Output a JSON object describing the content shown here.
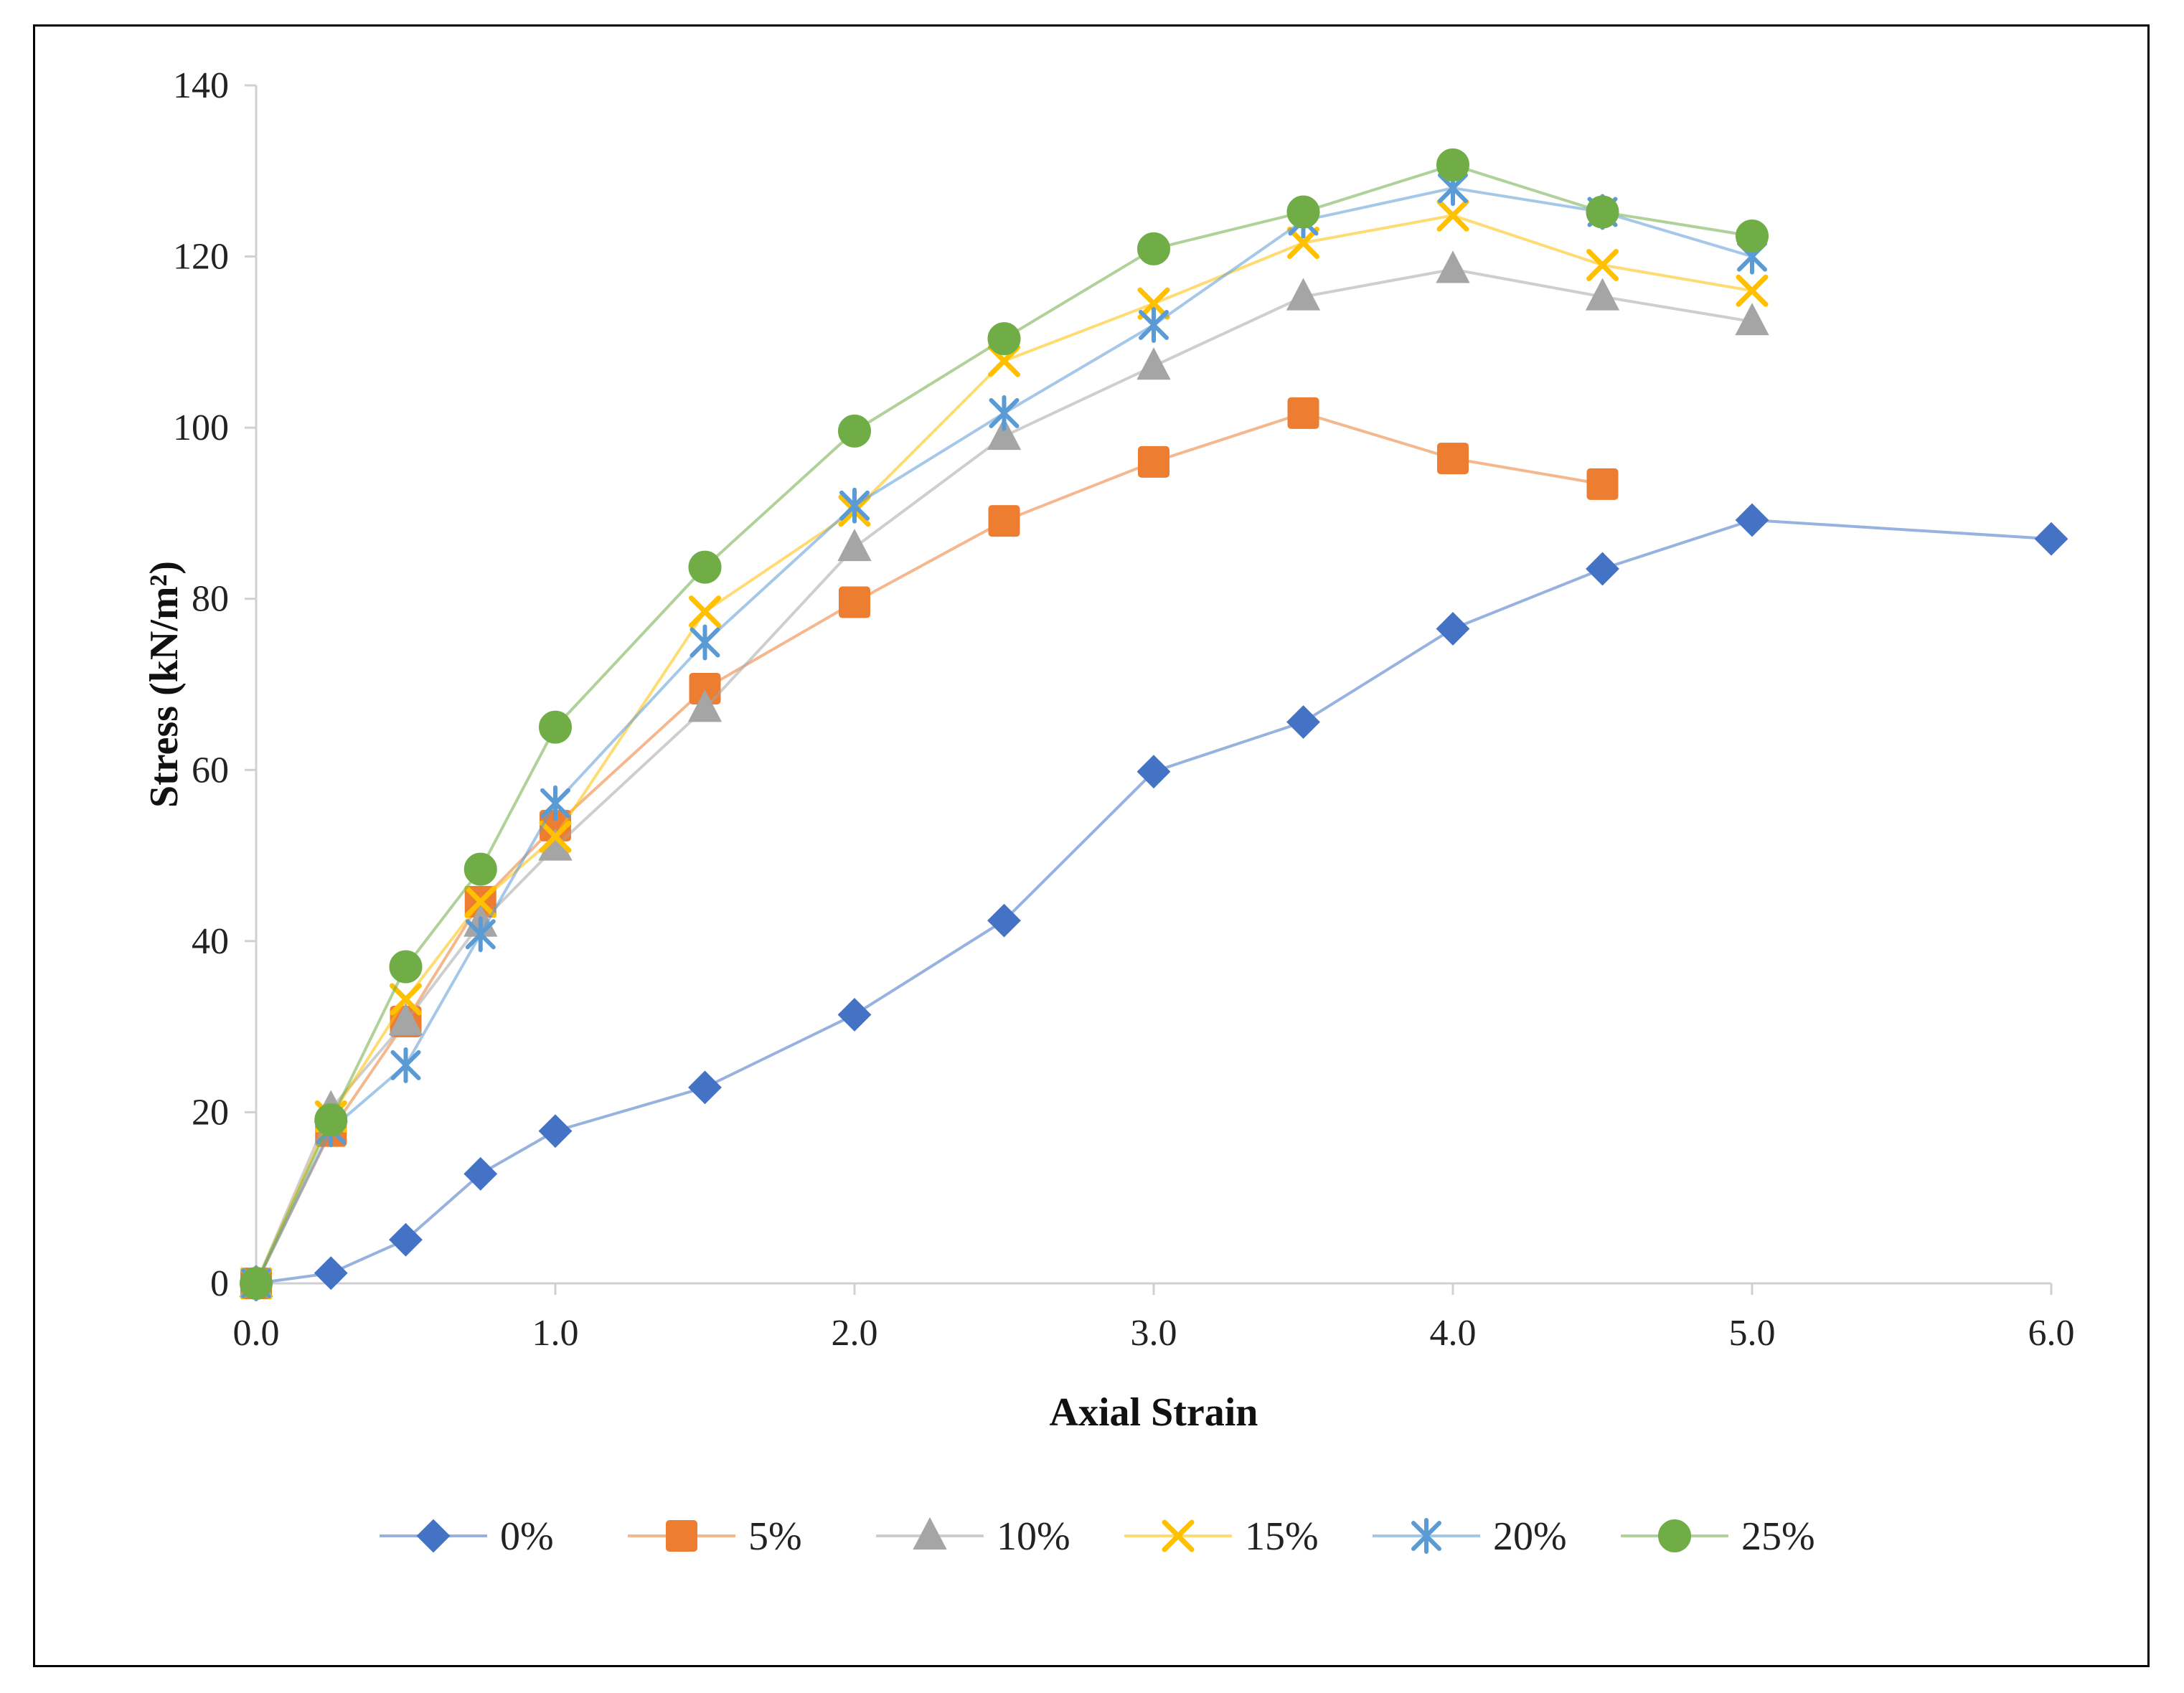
{
  "chart_data": {
    "type": "line",
    "xlabel": "Axial Strain",
    "ylabel": "Stress (kN/m²)",
    "xlim": [
      0,
      6
    ],
    "ylim": [
      0,
      140
    ],
    "x_ticks": [
      "0.0",
      "1.0",
      "2.0",
      "3.0",
      "4.0",
      "5.0",
      "6.0"
    ],
    "y_ticks": [
      "0",
      "20",
      "40",
      "60",
      "80",
      "100",
      "120",
      "140"
    ],
    "grid": "none",
    "legend_position": "bottom",
    "series": [
      {
        "name": "0%",
        "color": "#4472C4",
        "marker": "diamond",
        "x": [
          0,
          0.25,
          0.5,
          0.75,
          1.0,
          1.5,
          2.0,
          2.5,
          3.0,
          3.5,
          4.0,
          4.5,
          5.0,
          6.0
        ],
        "y": [
          0,
          1.2,
          5.1,
          12.8,
          17.8,
          22.9,
          31.4,
          42.4,
          59.8,
          65.6,
          76.5,
          83.5,
          89.2,
          87.0
        ]
      },
      {
        "name": "5%",
        "color": "#ED7D31",
        "marker": "square",
        "x": [
          0,
          0.25,
          0.5,
          0.75,
          1.0,
          1.5,
          2.0,
          2.5,
          3.0,
          3.5,
          4.0,
          4.5
        ],
        "y": [
          0,
          17.8,
          30.6,
          44.6,
          53.5,
          69.5,
          79.6,
          89.1,
          96.0,
          101.7,
          96.4,
          93.4
        ]
      },
      {
        "name": "10%",
        "color": "#A5A5A5",
        "marker": "triangle",
        "x": [
          0,
          0.25,
          0.5,
          0.75,
          1.0,
          1.5,
          2.0,
          2.5,
          3.0,
          3.5,
          4.0,
          4.5,
          5.0
        ],
        "y": [
          0,
          20.4,
          30.6,
          42.1,
          51.0,
          67.2,
          86.0,
          99.0,
          107.2,
          115.3,
          118.5,
          115.3,
          112.4
        ]
      },
      {
        "name": "15%",
        "color": "#FFC000",
        "marker": "x",
        "x": [
          0,
          0.25,
          0.5,
          0.75,
          1.0,
          1.5,
          2.0,
          2.5,
          3.0,
          3.5,
          4.0,
          4.5,
          5.0
        ],
        "y": [
          0,
          19.5,
          33.2,
          44.6,
          52.2,
          78.5,
          90.3,
          107.8,
          114.5,
          121.6,
          124.8,
          119.0,
          116.0
        ]
      },
      {
        "name": "20%",
        "color": "#5B9BD5",
        "marker": "star",
        "x": [
          0,
          0.25,
          0.5,
          0.75,
          1.0,
          1.5,
          2.0,
          2.5,
          3.0,
          3.5,
          4.0,
          4.5,
          5.0
        ],
        "y": [
          0,
          18.0,
          25.5,
          40.8,
          56.1,
          74.9,
          90.9,
          101.7,
          112.0,
          124.2,
          128.0,
          125.2,
          120.0
        ]
      },
      {
        "name": "25%",
        "color": "#70AD47",
        "marker": "circle",
        "x": [
          0,
          0.25,
          0.5,
          0.75,
          1.0,
          1.5,
          2.0,
          2.5,
          3.0,
          3.5,
          4.0,
          4.5,
          5.0
        ],
        "y": [
          0,
          19.1,
          37.0,
          48.4,
          65.0,
          83.7,
          99.6,
          110.4,
          120.9,
          125.2,
          130.7,
          125.2,
          122.4
        ]
      }
    ]
  }
}
